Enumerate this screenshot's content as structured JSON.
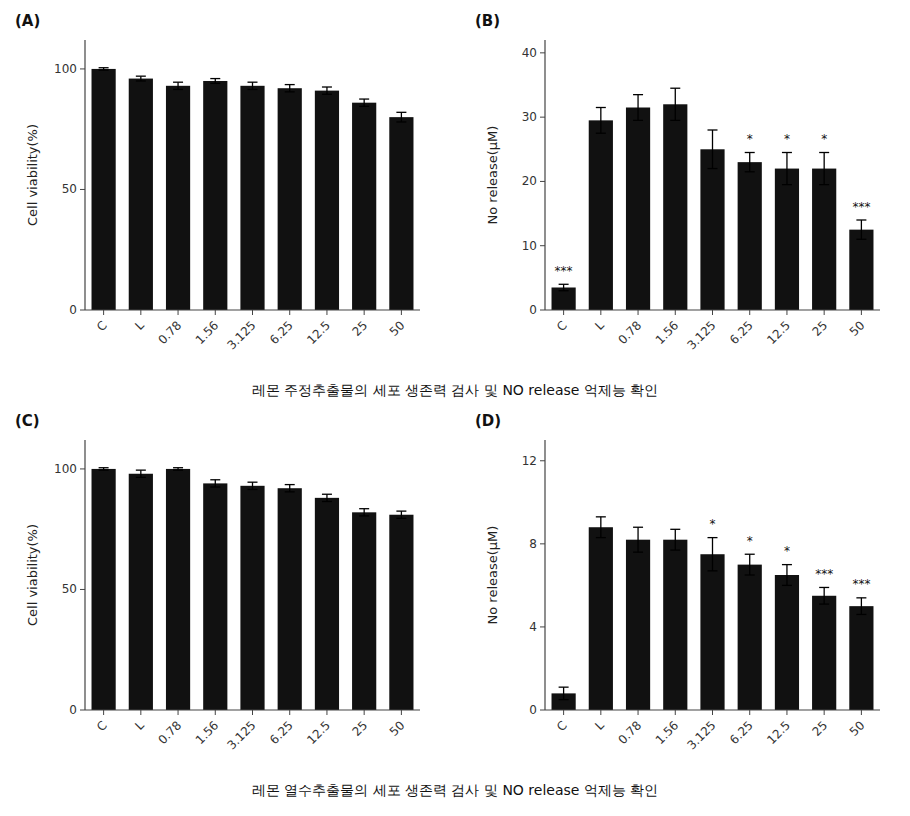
{
  "chart_data": [
    {
      "type": "bar",
      "title": "(A)",
      "categories": [
        "C",
        "L",
        "0.78",
        "1.56",
        "3.125",
        "6.25",
        "12.5",
        "25",
        "50"
      ],
      "values": [
        100,
        96,
        93,
        95,
        93,
        92,
        91,
        86,
        80
      ],
      "errors": [
        0.5,
        1.0,
        1.5,
        1.0,
        1.5,
        1.5,
        1.5,
        1.5,
        2.0
      ],
      "y_label": "Cell viability(%)",
      "ylim": [
        0,
        112
      ],
      "yticks": [
        0,
        50,
        100
      ],
      "color": "#111111",
      "annotations": [
        {
          "text": "레몬 주정추출물의 세포 생존력 검사 및 NO release 억제능 확인"
        }
      ]
    },
    {
      "type": "bar",
      "title": "(B)",
      "categories": [
        "C",
        "L",
        "0.78",
        "1.56",
        "3.125",
        "6.25",
        "12.5",
        "25",
        "50"
      ],
      "values": [
        3.5,
        29.5,
        31.5,
        32.0,
        25.0,
        23.0,
        22.0,
        22.0,
        12.5
      ],
      "errors": [
        0.5,
        2.0,
        2.0,
        2.5,
        3.0,
        1.5,
        2.5,
        2.5,
        1.5
      ],
      "y_label": "No release(μM)",
      "ylim": [
        0,
        42
      ],
      "yticks": [
        0,
        10,
        20,
        30,
        40
      ],
      "color": "#111111",
      "annotations": [
        {
          "category": "C",
          "text": "***"
        },
        {
          "category": "6.25",
          "text": "*"
        },
        {
          "category": "12.5",
          "text": "*"
        },
        {
          "category": "25",
          "text": "*"
        },
        {
          "category": "50",
          "text": "***"
        }
      ]
    },
    {
      "type": "bar",
      "title": "(C)",
      "categories": [
        "C",
        "L",
        "0.78",
        "1.56",
        "3.125",
        "6.25",
        "12.5",
        "25",
        "50"
      ],
      "values": [
        100,
        98,
        100,
        94,
        93,
        92,
        88,
        82,
        81
      ],
      "errors": [
        0.5,
        1.5,
        0.5,
        1.5,
        1.5,
        1.5,
        1.5,
        1.5,
        1.5
      ],
      "y_label": "Cell viability(%)",
      "ylim": [
        0,
        112
      ],
      "yticks": [
        0,
        50,
        100
      ],
      "color": "#111111",
      "annotations": [
        {
          "text": "레몬 열수추출물의 세포 생존력 검사 및 NO release 억제능 확인"
        }
      ]
    },
    {
      "type": "bar",
      "title": "(D)",
      "categories": [
        "C",
        "L",
        "0.78",
        "1.56",
        "3.125",
        "6.25",
        "12.5",
        "25",
        "50"
      ],
      "values": [
        0.8,
        8.8,
        8.2,
        8.2,
        7.5,
        7.0,
        6.5,
        5.5,
        5.0
      ],
      "errors": [
        0.3,
        0.5,
        0.6,
        0.5,
        0.8,
        0.5,
        0.5,
        0.4,
        0.4
      ],
      "y_label": "No release(μM)",
      "ylim": [
        0,
        13
      ],
      "yticks": [
        0,
        4,
        8,
        12
      ],
      "color": "#111111",
      "annotations": [
        {
          "category": "3.125",
          "text": "*"
        },
        {
          "category": "6.25",
          "text": "*"
        },
        {
          "category": "12.5",
          "text": "*"
        },
        {
          "category": "25",
          "text": "***"
        },
        {
          "category": "50",
          "text": "***"
        }
      ]
    }
  ]
}
